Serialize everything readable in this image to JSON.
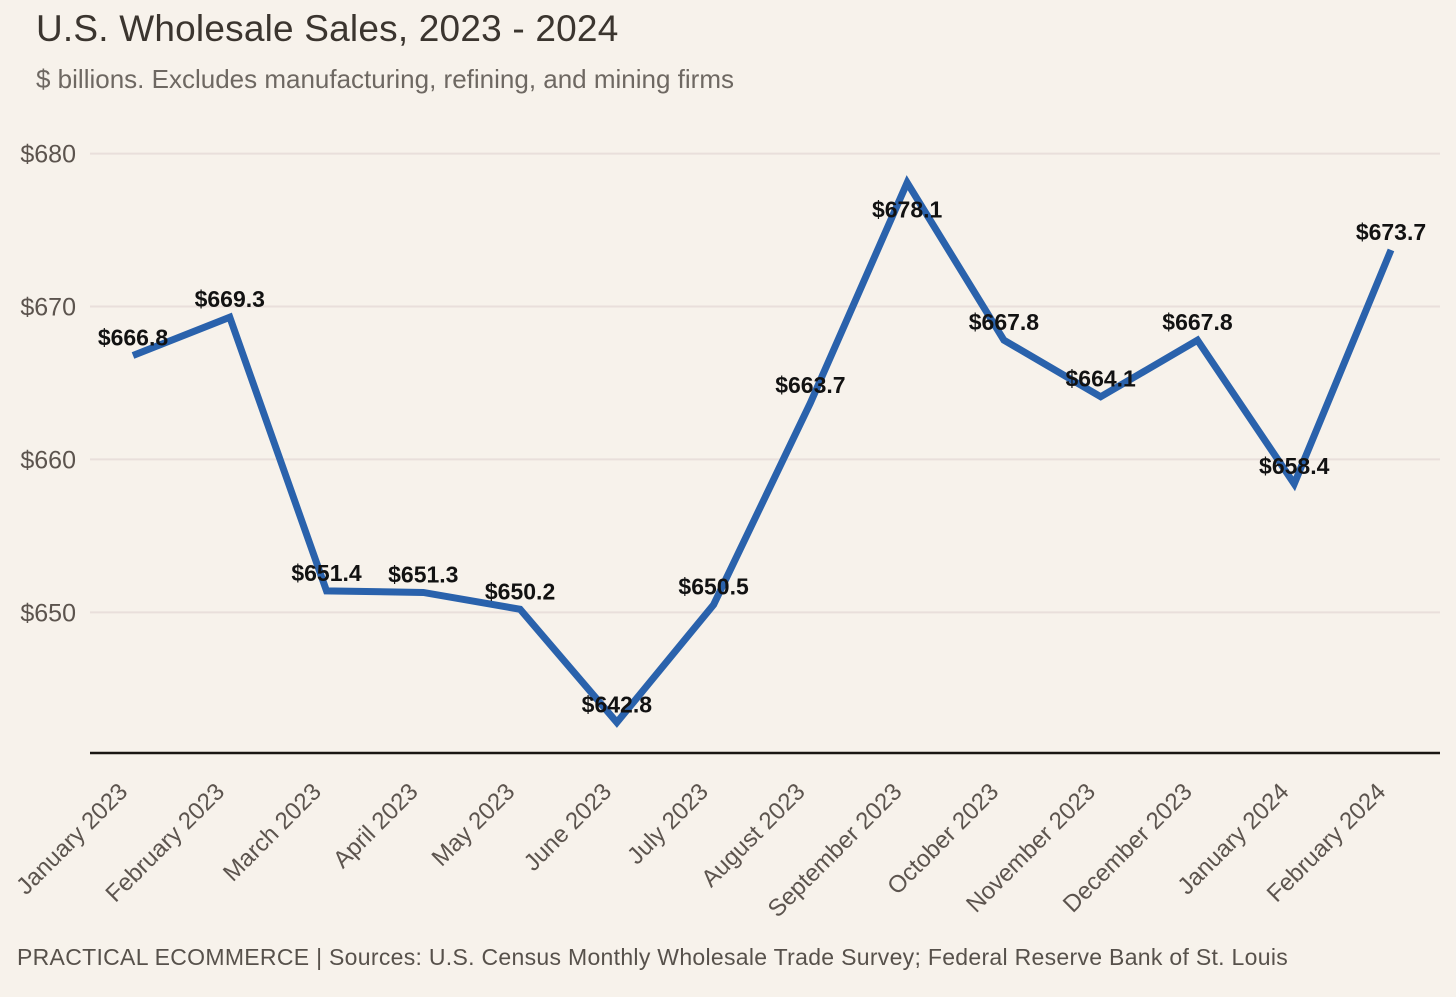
{
  "chart_data": {
    "type": "line",
    "title": "U.S. Wholesale Sales, 2023 - 2024",
    "subtitle": "$ billions. Excludes manufacturing, refining, and mining firms",
    "categories": [
      "January 2023",
      "February 2023",
      "March 2023",
      "April 2023",
      "May 2023",
      "June 2023",
      "July 2023",
      "August 2023",
      "September 2023",
      "October 2023",
      "November 2023",
      "December 2023",
      "January 2024",
      "February 2024"
    ],
    "series": [
      {
        "name": "U.S. wholesale sales ($ billions)",
        "values": [
          666.8,
          669.3,
          651.4,
          651.3,
          650.2,
          642.8,
          650.5,
          663.7,
          678.1,
          667.8,
          664.1,
          667.8,
          658.4,
          673.7
        ]
      }
    ],
    "data_label_prefix": "$",
    "y_ticks": [
      680,
      670,
      660,
      650
    ],
    "y_tick_prefix": "$",
    "ylim": [
      640.8,
      682.2
    ],
    "xlabel": "",
    "ylabel": "",
    "grid": "horizontal-only",
    "legend": "none",
    "x_label_rotation": -45,
    "label_dy_default": -10,
    "label_dy_overrides": {
      "8": 35
    }
  },
  "footer": {
    "text": "PRACTICAL ECOMMERCE | Sources: U.S. Census Monthly Wholesale Trade Survey; Federal Reserve Bank of St. Louis"
  },
  "colors": {
    "background": "#f7f2eb",
    "line": "#2a62ac",
    "gridline": "#e9dfdb",
    "axis_line": "#1a1613",
    "tick_label": "#5c544e",
    "data_label": "#121212",
    "title": "#3b352f",
    "subtitle": "#6e6862",
    "footer": "#57514b"
  }
}
